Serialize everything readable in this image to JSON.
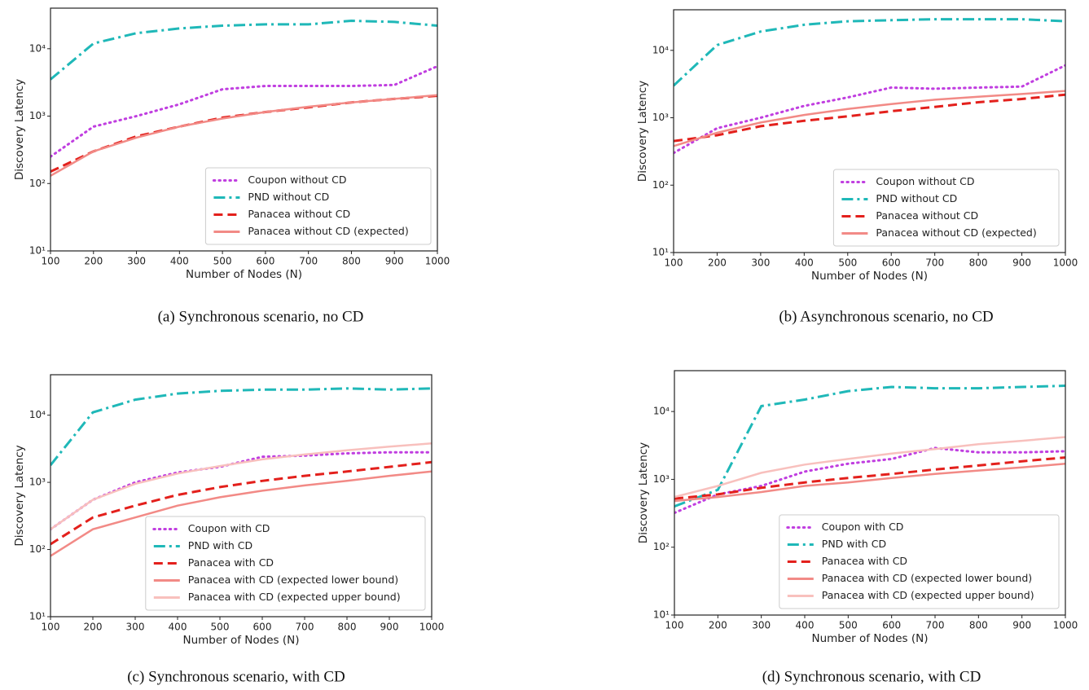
{
  "chart_data": [
    {
      "type": "line",
      "caption": "(a) Synchronous scenario, no CD",
      "xlabel": "Number of Nodes (N)",
      "ylabel": "Discovery Latency",
      "yscale": "log",
      "legend": "lower right",
      "x": [
        100,
        200,
        300,
        400,
        500,
        600,
        700,
        800,
        900,
        1000
      ],
      "xlim": [
        100,
        1000
      ],
      "xticks": [
        100,
        200,
        300,
        400,
        500,
        600,
        700,
        800,
        900,
        1000
      ],
      "ylim": [
        10,
        40000
      ],
      "yticks": [
        {
          "value": 10,
          "label": "10¹"
        },
        {
          "value": 100,
          "label": "10²"
        },
        {
          "value": 1000,
          "label": "10³"
        },
        {
          "value": 10000,
          "label": "10⁴"
        }
      ],
      "series": [
        {
          "name": "Coupon without CD",
          "color": "#c03ee0",
          "style": "dotted",
          "values": [
            250,
            700,
            1000,
            1500,
            2500,
            2800,
            2800,
            2800,
            2900,
            5500
          ]
        },
        {
          "name": "PND without CD",
          "color": "#1fb8b8",
          "style": "dashdot",
          "values": [
            3500,
            12000,
            17000,
            20000,
            22000,
            23000,
            23000,
            26000,
            25000,
            22000
          ]
        },
        {
          "name": "Panacea without CD",
          "color": "#e3201c",
          "style": "dashed",
          "values": [
            150,
            300,
            500,
            700,
            950,
            1150,
            1350,
            1600,
            1800,
            2000
          ]
        },
        {
          "name": "Panacea without CD (expected)",
          "color": "#f28a86",
          "style": "solid",
          "values": [
            130,
            300,
            480,
            700,
            920,
            1150,
            1380,
            1600,
            1800,
            2050
          ]
        }
      ]
    },
    {
      "type": "line",
      "caption": "(b) Asynchronous scenario, no CD",
      "xlabel": "Number of Nodes (N)",
      "ylabel": "Discovery Latency",
      "yscale": "log",
      "legend": "lower right",
      "x": [
        100,
        200,
        300,
        400,
        500,
        600,
        700,
        800,
        900,
        1000
      ],
      "xlim": [
        100,
        1000
      ],
      "xticks": [
        100,
        200,
        300,
        400,
        500,
        600,
        700,
        800,
        900,
        1000
      ],
      "ylim": [
        10,
        40000
      ],
      "yticks": [
        {
          "value": 10,
          "label": "10¹"
        },
        {
          "value": 100,
          "label": "10²"
        },
        {
          "value": 1000,
          "label": "10³"
        },
        {
          "value": 10000,
          "label": "10⁴"
        }
      ],
      "series": [
        {
          "name": "Coupon without CD",
          "color": "#c03ee0",
          "style": "dotted",
          "values": [
            300,
            700,
            1000,
            1500,
            2000,
            2800,
            2700,
            2800,
            2900,
            6000
          ]
        },
        {
          "name": "PND without CD",
          "color": "#1fb8b8",
          "style": "dashdot",
          "values": [
            3000,
            12000,
            19000,
            24000,
            27000,
            28000,
            29000,
            29000,
            29000,
            27000
          ]
        },
        {
          "name": "Panacea without CD",
          "color": "#e3201c",
          "style": "dashed",
          "values": [
            450,
            550,
            750,
            900,
            1050,
            1250,
            1450,
            1700,
            1900,
            2200
          ]
        },
        {
          "name": "Panacea without CD (expected)",
          "color": "#f28a86",
          "style": "solid",
          "values": [
            380,
            600,
            850,
            1100,
            1350,
            1600,
            1850,
            2050,
            2250,
            2500
          ]
        }
      ]
    },
    {
      "type": "line",
      "caption": "(c) Synchronous scenario, with CD",
      "xlabel": "Number of Nodes (N)",
      "ylabel": "Discovery Latency",
      "yscale": "log",
      "legend": "lower right",
      "x": [
        100,
        200,
        300,
        400,
        500,
        600,
        700,
        800,
        900,
        1000
      ],
      "xlim": [
        100,
        1000
      ],
      "xticks": [
        100,
        200,
        300,
        400,
        500,
        600,
        700,
        800,
        900,
        1000
      ],
      "ylim": [
        10,
        40000
      ],
      "yticks": [
        {
          "value": 10,
          "label": "10¹"
        },
        {
          "value": 100,
          "label": "10²"
        },
        {
          "value": 1000,
          "label": "10³"
        },
        {
          "value": 10000,
          "label": "10⁴"
        }
      ],
      "series": [
        {
          "name": "Coupon with CD",
          "color": "#c03ee0",
          "style": "dotted",
          "values": [
            200,
            550,
            1000,
            1400,
            1700,
            2400,
            2500,
            2700,
            2800,
            2800
          ]
        },
        {
          "name": "PND with CD",
          "color": "#1fb8b8",
          "style": "dashdot",
          "values": [
            1800,
            11000,
            17000,
            21000,
            23000,
            24000,
            24000,
            25000,
            24000,
            25000
          ]
        },
        {
          "name": "Panacea with CD",
          "color": "#e3201c",
          "style": "dashed",
          "values": [
            120,
            300,
            450,
            650,
            850,
            1050,
            1250,
            1450,
            1700,
            2000
          ]
        },
        {
          "name": "Panacea with CD (expected lower bound)",
          "color": "#f28a86",
          "style": "solid",
          "values": [
            80,
            200,
            300,
            450,
            600,
            750,
            900,
            1050,
            1250,
            1450
          ]
        },
        {
          "name": "Panacea with CD (expected upper bound)",
          "color": "#f8c0bd",
          "style": "solid",
          "values": [
            200,
            550,
            950,
            1350,
            1750,
            2200,
            2600,
            3000,
            3400,
            3800
          ]
        }
      ]
    },
    {
      "type": "line",
      "caption": "(d) Synchronous scenario, with CD",
      "xlabel": "Number of Nodes (N)",
      "ylabel": "Discovery Latency",
      "yscale": "log",
      "legend": "lower right",
      "x": [
        100,
        200,
        300,
        400,
        500,
        600,
        700,
        800,
        900,
        1000
      ],
      "xlim": [
        100,
        1000
      ],
      "xticks": [
        100,
        200,
        300,
        400,
        500,
        600,
        700,
        800,
        900,
        1000
      ],
      "ylim": [
        10,
        40000
      ],
      "yticks": [
        {
          "value": 10,
          "label": "10¹"
        },
        {
          "value": 100,
          "label": "10²"
        },
        {
          "value": 1000,
          "label": "10³"
        },
        {
          "value": 10000,
          "label": "10⁴"
        }
      ],
      "series": [
        {
          "name": "Coupon with CD",
          "color": "#c03ee0",
          "style": "dotted",
          "values": [
            320,
            600,
            800,
            1300,
            1700,
            2000,
            2900,
            2500,
            2500,
            2600
          ]
        },
        {
          "name": "PND with CD",
          "color": "#1fb8b8",
          "style": "dashdot",
          "values": [
            400,
            700,
            12000,
            15000,
            20000,
            23000,
            22000,
            22000,
            23000,
            24000
          ]
        },
        {
          "name": "Panacea with CD",
          "color": "#e3201c",
          "style": "dashed",
          "values": [
            520,
            600,
            750,
            900,
            1050,
            1200,
            1400,
            1600,
            1850,
            2100
          ]
        },
        {
          "name": "Panacea with CD (expected lower bound)",
          "color": "#f28a86",
          "style": "solid",
          "values": [
            480,
            550,
            650,
            800,
            900,
            1050,
            1200,
            1350,
            1500,
            1700
          ]
        },
        {
          "name": "Panacea with CD (expected upper bound)",
          "color": "#f8c0bd",
          "style": "solid",
          "values": [
            550,
            800,
            1250,
            1650,
            2000,
            2400,
            2800,
            3300,
            3700,
            4200
          ]
        }
      ]
    }
  ]
}
